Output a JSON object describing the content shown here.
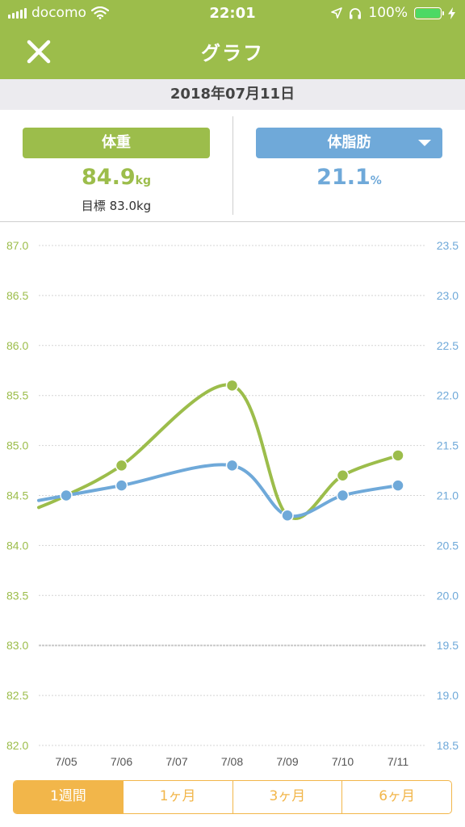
{
  "status_bar": {
    "carrier": "docomo",
    "time": "22:01",
    "battery": "100%"
  },
  "header": {
    "title": "グラフ",
    "close_icon": "close-icon"
  },
  "date_label": "2018年07月11日",
  "metrics": {
    "weight": {
      "label": "体重",
      "value": "84.9",
      "unit": "kg",
      "goal_label": "目標",
      "goal_value": "83.0kg"
    },
    "body_fat": {
      "label": "体脂肪",
      "value": "21.1",
      "unit": "%"
    }
  },
  "colors": {
    "accent_green": "#9cbd4b",
    "accent_blue": "#6fa9d9",
    "accent_orange": "#f2b64a"
  },
  "chart_data": {
    "type": "line",
    "categories": [
      "7/05",
      "7/06",
      "7/07",
      "7/08",
      "7/09",
      "7/10",
      "7/11"
    ],
    "series": [
      {
        "values": [
          84.5,
          84.8,
          null,
          85.6,
          84.3,
          84.7,
          84.9
        ],
        "color": "#9cbd4b",
        "axis": "left"
      },
      {
        "values": [
          21.0,
          21.1,
          null,
          21.3,
          20.8,
          21.0,
          21.1
        ],
        "color": "#6fa9d9",
        "axis": "right"
      }
    ],
    "left_axis": {
      "ticks": [
        "87.0",
        "86.5",
        "86.0",
        "85.5",
        "85.0",
        "84.5",
        "84.0",
        "83.5",
        "83.0",
        "82.5",
        "82.0"
      ],
      "ylim": [
        82.0,
        87.0
      ]
    },
    "right_axis": {
      "ticks": [
        "23.5",
        "23.0",
        "22.5",
        "22.0",
        "21.5",
        "21.0",
        "20.5",
        "20.0",
        "19.5",
        "19.0",
        "18.5"
      ],
      "ylim": [
        18.5,
        23.5
      ]
    },
    "goal_line": 83.0,
    "grid": true
  },
  "range_tabs": [
    "1週間",
    "1ヶ月",
    "3ヶ月",
    "6ヶ月"
  ],
  "range_selected": "1週間"
}
